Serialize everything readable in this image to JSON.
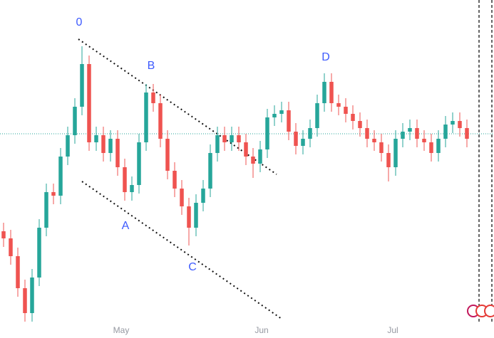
{
  "chart_data": {
    "type": "candlestick",
    "annotations": [
      "0",
      "A",
      "B",
      "C",
      "D"
    ],
    "xlim": [
      -0.5,
      68.8
    ],
    "ylim": [
      0,
      455
    ],
    "xticks": [
      {
        "value": 16.5,
        "label": "May"
      },
      {
        "value": 36.2,
        "label": "Jun"
      },
      {
        "value": 54.6,
        "label": "Jul"
      }
    ],
    "up_color": "#26a69a",
    "down_color": "#ef5350",
    "x": [
      0,
      1,
      2,
      3,
      4,
      5,
      6,
      7,
      8,
      9,
      10,
      11,
      12,
      13,
      14,
      15,
      16,
      17,
      18,
      19,
      20,
      21,
      22,
      23,
      24,
      25,
      26,
      27,
      28,
      29,
      30,
      31,
      32,
      33,
      34,
      35,
      36,
      37,
      38,
      39,
      40,
      41,
      42,
      43,
      44,
      45,
      46,
      47,
      48,
      49,
      50,
      51,
      52,
      53,
      54,
      55,
      56,
      57,
      58,
      59,
      60,
      61,
      62,
      63,
      64,
      65
    ],
    "open": [
      130,
      120,
      95,
      50,
      15,
      65,
      135,
      185,
      180,
      235,
      265,
      305,
      365,
      255,
      265,
      240,
      260,
      220,
      185,
      195,
      255,
      325,
      310,
      260,
      215,
      190,
      165,
      135,
      170,
      190,
      240,
      265,
      255,
      265,
      255,
      235,
      225,
      245,
      290,
      295,
      300,
      270,
      250,
      260,
      275,
      310,
      340,
      310,
      305,
      295,
      285,
      275,
      260,
      255,
      240,
      220,
      260,
      270,
      275,
      260,
      255,
      240,
      260,
      280,
      285,
      275
    ],
    "high": [
      142,
      132,
      107,
      62,
      77,
      147,
      197,
      197,
      247,
      277,
      317,
      390,
      377,
      277,
      277,
      272,
      272,
      232,
      207,
      267,
      337,
      337,
      322,
      272,
      227,
      202,
      177,
      182,
      202,
      252,
      277,
      277,
      277,
      277,
      267,
      247,
      257,
      302,
      307,
      312,
      312,
      282,
      272,
      287,
      322,
      352,
      352,
      322,
      317,
      307,
      297,
      287,
      272,
      267,
      252,
      272,
      282,
      287,
      287,
      272,
      267,
      272,
      292,
      297,
      297,
      287
    ],
    "low": [
      108,
      83,
      38,
      3,
      3,
      53,
      123,
      168,
      168,
      223,
      253,
      293,
      243,
      243,
      228,
      228,
      208,
      173,
      173,
      183,
      243,
      298,
      248,
      203,
      178,
      153,
      110,
      123,
      158,
      178,
      228,
      243,
      243,
      243,
      223,
      205,
      213,
      233,
      278,
      283,
      258,
      238,
      238,
      248,
      263,
      298,
      298,
      293,
      283,
      273,
      263,
      248,
      243,
      228,
      200,
      208,
      248,
      258,
      248,
      243,
      228,
      228,
      248,
      268,
      263,
      248
    ],
    "close": [
      120,
      95,
      50,
      15,
      65,
      135,
      185,
      180,
      235,
      265,
      305,
      365,
      255,
      265,
      240,
      260,
      220,
      185,
      195,
      255,
      325,
      310,
      260,
      215,
      190,
      165,
      135,
      170,
      190,
      240,
      265,
      255,
      265,
      255,
      235,
      225,
      245,
      290,
      295,
      300,
      270,
      250,
      260,
      275,
      310,
      340,
      310,
      305,
      295,
      285,
      275,
      260,
      255,
      240,
      220,
      260,
      270,
      275,
      260,
      255,
      240,
      260,
      280,
      285,
      275,
      260
    ]
  }
}
